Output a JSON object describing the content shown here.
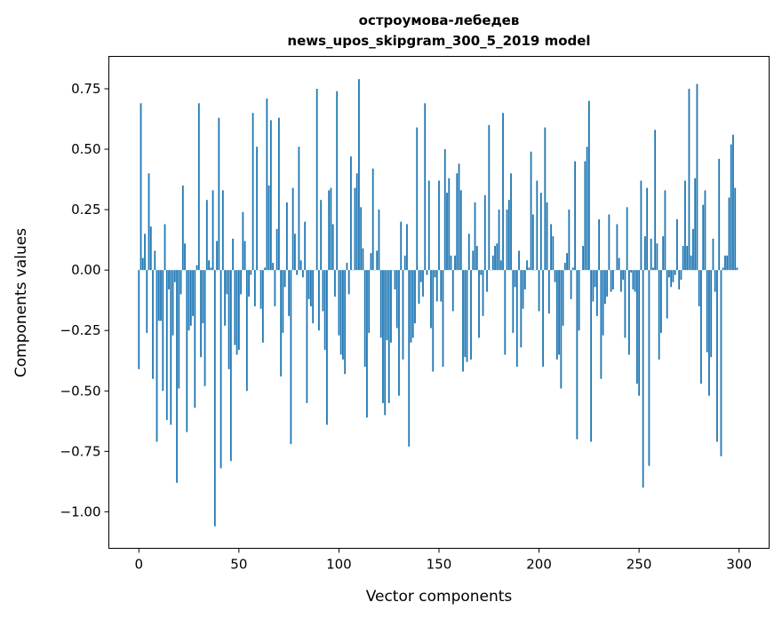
{
  "chart_data": {
    "type": "bar",
    "title_line1": "остроумова-лебедев",
    "title_line2": "news_upos_skipgram_300_5_2019 model",
    "xlabel": "Vector components",
    "ylabel": "Components values",
    "xlim": [
      -15,
      315
    ],
    "ylim": [
      -1.151,
      0.884
    ],
    "xticks": [
      0,
      50,
      100,
      150,
      200,
      250,
      300
    ],
    "xtick_labels": [
      "0",
      "50",
      "100",
      "150",
      "200",
      "250",
      "300"
    ],
    "yticks": [
      0.75,
      0.5,
      0.25,
      0.0,
      -0.25,
      -0.5,
      -0.75,
      -1.0
    ],
    "ytick_labels": [
      "0.75",
      "0.50",
      "0.25",
      "0.00",
      "−0.25",
      "−0.50",
      "−0.75",
      "−1.00"
    ],
    "grid": false,
    "bar_color": "#1f77b4",
    "values": [
      -0.41,
      0.69,
      0.05,
      0.15,
      -0.26,
      0.4,
      0.18,
      -0.45,
      0.08,
      -0.71,
      -0.21,
      -0.21,
      -0.5,
      0.19,
      -0.62,
      -0.08,
      -0.64,
      -0.27,
      -0.05,
      -0.88,
      -0.49,
      -0.1,
      0.35,
      0.11,
      -0.67,
      -0.25,
      -0.23,
      -0.19,
      -0.57,
      0.02,
      0.69,
      -0.36,
      -0.22,
      -0.48,
      0.29,
      0.04,
      0.01,
      0.33,
      -1.06,
      0.12,
      0.63,
      -0.82,
      0.33,
      -0.23,
      -0.1,
      -0.41,
      -0.79,
      0.13,
      -0.31,
      -0.35,
      -0.33,
      -0.1,
      0.24,
      0.12,
      -0.5,
      -0.11,
      -0.02,
      0.65,
      -0.15,
      0.51,
      0.0,
      -0.16,
      -0.3,
      0.01,
      0.71,
      0.35,
      0.62,
      0.03,
      -0.15,
      0.17,
      0.63,
      -0.44,
      -0.26,
      -0.07,
      0.28,
      -0.19,
      -0.72,
      0.34,
      0.15,
      -0.02,
      0.51,
      0.04,
      -0.03,
      0.2,
      -0.55,
      -0.12,
      -0.15,
      -0.22,
      0.0,
      0.75,
      -0.25,
      0.29,
      -0.17,
      -0.33,
      -0.64,
      0.33,
      0.34,
      0.19,
      -0.11,
      0.74,
      -0.27,
      -0.35,
      -0.37,
      -0.43,
      0.03,
      -0.1,
      0.47,
      0.0,
      0.34,
      0.4,
      0.79,
      0.26,
      0.09,
      -0.4,
      -0.61,
      -0.26,
      0.07,
      0.42,
      0.0,
      0.08,
      0.25,
      -0.28,
      -0.55,
      -0.6,
      -0.29,
      -0.55,
      -0.3,
      0.0,
      -0.08,
      -0.24,
      -0.52,
      0.2,
      -0.37,
      0.06,
      0.19,
      -0.73,
      -0.3,
      -0.28,
      -0.22,
      0.59,
      -0.14,
      -0.05,
      -0.11,
      0.69,
      -0.02,
      0.37,
      -0.24,
      -0.42,
      -0.03,
      -0.13,
      0.37,
      -0.13,
      -0.4,
      0.5,
      0.32,
      0.38,
      0.06,
      -0.17,
      0.06,
      0.4,
      0.44,
      0.33,
      -0.42,
      -0.36,
      -0.38,
      0.15,
      -0.37,
      0.08,
      0.28,
      0.1,
      -0.28,
      -0.02,
      -0.19,
      0.31,
      -0.09,
      0.6,
      0.0,
      0.06,
      0.1,
      0.11,
      0.25,
      0.04,
      0.65,
      -0.35,
      0.25,
      0.29,
      0.4,
      -0.26,
      -0.07,
      -0.4,
      0.08,
      -0.32,
      -0.16,
      -0.08,
      0.04,
      0.01,
      0.49,
      0.23,
      0.0,
      0.37,
      -0.17,
      0.32,
      -0.4,
      0.59,
      0.28,
      -0.18,
      0.19,
      0.14,
      -0.05,
      -0.37,
      -0.35,
      -0.49,
      -0.23,
      0.03,
      0.07,
      0.25,
      -0.12,
      0.01,
      0.45,
      -0.7,
      -0.25,
      0.0,
      0.1,
      0.45,
      0.51,
      0.7,
      -0.71,
      -0.13,
      -0.07,
      -0.19,
      0.21,
      -0.45,
      -0.27,
      -0.14,
      -0.11,
      0.23,
      -0.09,
      -0.08,
      0.0,
      0.19,
      0.05,
      -0.09,
      -0.04,
      -0.28,
      0.26,
      -0.35,
      -0.01,
      -0.08,
      -0.09,
      -0.47,
      -0.52,
      0.37,
      -0.9,
      0.14,
      0.34,
      -0.81,
      0.13,
      0.01,
      0.58,
      0.11,
      -0.37,
      -0.26,
      0.14,
      0.33,
      -0.2,
      -0.03,
      -0.07,
      -0.05,
      -0.02,
      0.21,
      -0.08,
      -0.04,
      0.1,
      0.37,
      0.1,
      0.75,
      0.06,
      0.17,
      0.38,
      0.77,
      -0.15,
      -0.47,
      0.27,
      0.33,
      -0.34,
      -0.52,
      -0.36,
      0.13,
      -0.09,
      -0.71,
      0.46,
      -0.77,
      0.01,
      0.06,
      0.06,
      0.3,
      0.52,
      0.56,
      0.34,
      0.01
    ]
  }
}
